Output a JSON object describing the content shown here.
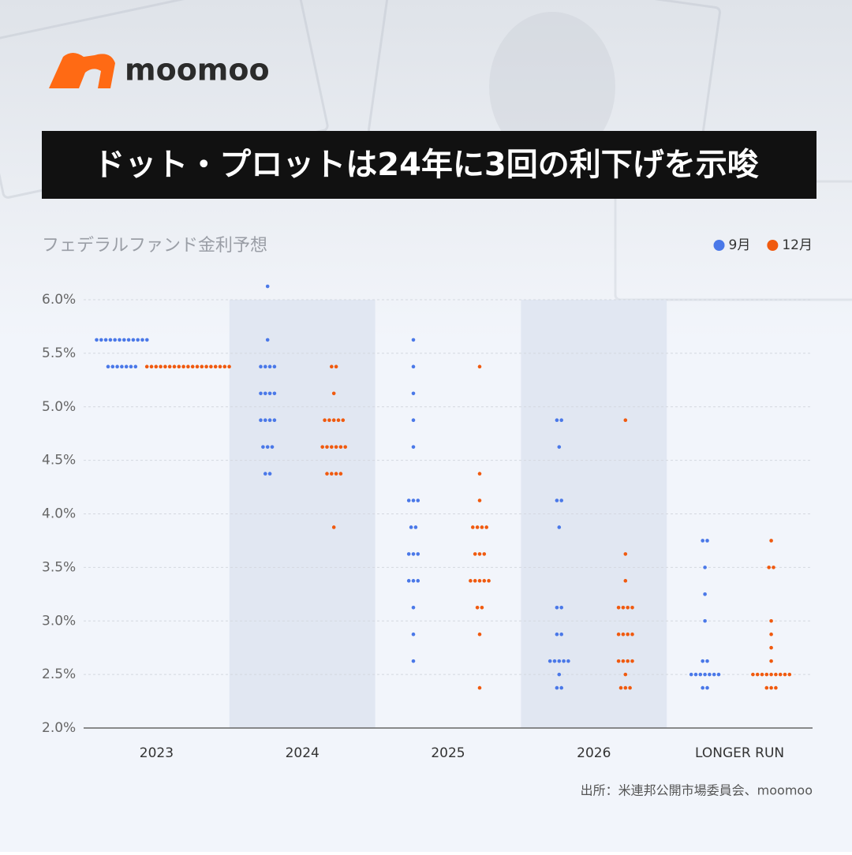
{
  "brand": "moomoo",
  "chart_data": {
    "type": "dot",
    "title": "ドット・プロットは24年に3回の利下げを示唆",
    "subtitle": "フェデラルファンド金利予想",
    "source": "出所：米連邦公開市場委員会、moomoo",
    "categories": [
      "2023",
      "2024",
      "2025",
      "2026",
      "LONGER RUN"
    ],
    "ylim": [
      2,
      6
    ],
    "yticks": [
      {
        "value": 2,
        "label": "2.0%"
      },
      {
        "value": 2.5,
        "label": "2.5%"
      },
      {
        "value": 3,
        "label": "3.0%"
      },
      {
        "value": 3.5,
        "label": "3.5%"
      },
      {
        "value": 4,
        "label": "4.0%"
      },
      {
        "value": 4.5,
        "label": "4.5%"
      },
      {
        "value": 5,
        "label": "5.0%"
      },
      {
        "value": 5.5,
        "label": "5.5%"
      },
      {
        "value": 6,
        "label": "6.0%"
      }
    ],
    "grid": true,
    "legend": "top-right",
    "series": [
      {
        "name": "9月",
        "color": "#4a78e8",
        "values": [
          [
            {
              "rate": 5.625,
              "count": 12
            },
            {
              "rate": 5.375,
              "count": 7
            }
          ],
          [
            {
              "rate": 6.125,
              "count": 1
            },
            {
              "rate": 5.625,
              "count": 1
            },
            {
              "rate": 5.375,
              "count": 4
            },
            {
              "rate": 5.125,
              "count": 4
            },
            {
              "rate": 4.875,
              "count": 4
            },
            {
              "rate": 4.625,
              "count": 3
            },
            {
              "rate": 4.375,
              "count": 2
            }
          ],
          [
            {
              "rate": 5.625,
              "count": 1
            },
            {
              "rate": 5.375,
              "count": 1
            },
            {
              "rate": 5.125,
              "count": 1
            },
            {
              "rate": 4.875,
              "count": 1
            },
            {
              "rate": 4.625,
              "count": 1
            },
            {
              "rate": 4.125,
              "count": 3
            },
            {
              "rate": 3.875,
              "count": 2
            },
            {
              "rate": 3.625,
              "count": 3
            },
            {
              "rate": 3.375,
              "count": 3
            },
            {
              "rate": 3.125,
              "count": 1
            },
            {
              "rate": 2.875,
              "count": 1
            },
            {
              "rate": 2.625,
              "count": 1
            }
          ],
          [
            {
              "rate": 4.875,
              "count": 2
            },
            {
              "rate": 4.625,
              "count": 1
            },
            {
              "rate": 4.125,
              "count": 2
            },
            {
              "rate": 3.875,
              "count": 1
            },
            {
              "rate": 3.125,
              "count": 2
            },
            {
              "rate": 2.875,
              "count": 2
            },
            {
              "rate": 2.625,
              "count": 5
            },
            {
              "rate": 2.5,
              "count": 1
            },
            {
              "rate": 2.375,
              "count": 2
            }
          ],
          [
            {
              "rate": 3.75,
              "count": 2
            },
            {
              "rate": 3.5,
              "count": 1
            },
            {
              "rate": 3.25,
              "count": 1
            },
            {
              "rate": 3,
              "count": 1
            },
            {
              "rate": 2.625,
              "count": 2
            },
            {
              "rate": 2.5,
              "count": 7
            },
            {
              "rate": 2.375,
              "count": 2
            }
          ]
        ]
      },
      {
        "name": "12月",
        "color": "#f05a0f",
        "values": [
          [
            {
              "rate": 5.375,
              "count": 19
            }
          ],
          [
            {
              "rate": 5.375,
              "count": 2
            },
            {
              "rate": 5.125,
              "count": 1
            },
            {
              "rate": 4.875,
              "count": 5
            },
            {
              "rate": 4.625,
              "count": 6
            },
            {
              "rate": 4.375,
              "count": 4
            },
            {
              "rate": 3.875,
              "count": 1
            }
          ],
          [
            {
              "rate": 5.375,
              "count": 1
            },
            {
              "rate": 4.375,
              "count": 1
            },
            {
              "rate": 4.125,
              "count": 1
            },
            {
              "rate": 3.875,
              "count": 4
            },
            {
              "rate": 3.625,
              "count": 3
            },
            {
              "rate": 3.375,
              "count": 5
            },
            {
              "rate": 3.125,
              "count": 2
            },
            {
              "rate": 2.875,
              "count": 1
            },
            {
              "rate": 2.375,
              "count": 1
            }
          ],
          [
            {
              "rate": 4.875,
              "count": 1
            },
            {
              "rate": 3.625,
              "count": 1
            },
            {
              "rate": 3.375,
              "count": 1
            },
            {
              "rate": 3.125,
              "count": 4
            },
            {
              "rate": 2.875,
              "count": 4
            },
            {
              "rate": 2.625,
              "count": 4
            },
            {
              "rate": 2.5,
              "count": 1
            },
            {
              "rate": 2.375,
              "count": 3
            }
          ],
          [
            {
              "rate": 3.75,
              "count": 1
            },
            {
              "rate": 3.5,
              "count": 2
            },
            {
              "rate": 3,
              "count": 1
            },
            {
              "rate": 2.875,
              "count": 1
            },
            {
              "rate": 2.75,
              "count": 1
            },
            {
              "rate": 2.625,
              "count": 1
            },
            {
              "rate": 2.5,
              "count": 9
            },
            {
              "rate": 2.375,
              "count": 3
            }
          ]
        ]
      }
    ]
  }
}
